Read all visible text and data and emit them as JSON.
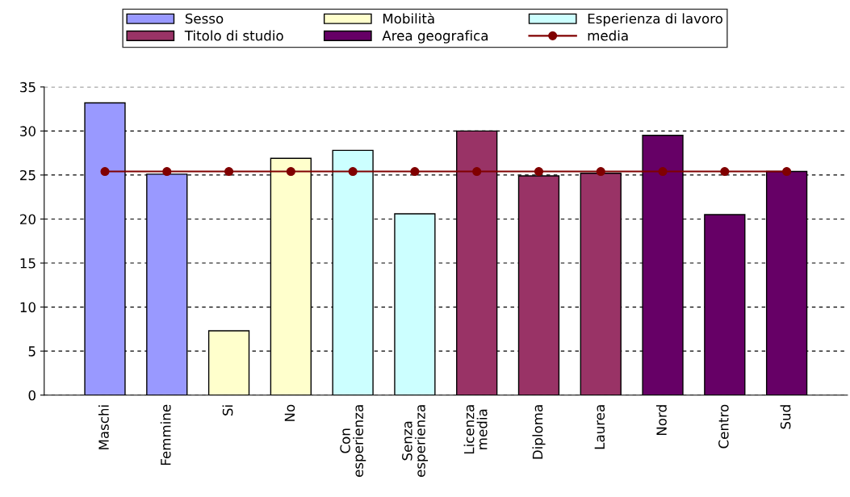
{
  "chart_data": {
    "type": "bar",
    "categories": [
      "Maschi",
      "Femmine",
      "Si",
      "No",
      "Con\nesperienza",
      "Senza\nesperienza",
      "Licenza\nmedia",
      "Diploma",
      "Laurea",
      "Nord",
      "Centro",
      "Sud"
    ],
    "series": [
      {
        "name": "Sesso",
        "color": "#9999ff",
        "values": [
          33.2,
          25.1,
          null,
          null,
          null,
          null,
          null,
          null,
          null,
          null,
          null,
          null
        ]
      },
      {
        "name": "Mobilità",
        "color": "#ffffcc",
        "values": [
          null,
          null,
          7.3,
          26.9,
          null,
          null,
          null,
          null,
          null,
          null,
          null,
          null
        ]
      },
      {
        "name": "Esperienza di lavoro",
        "color": "#ccffff",
        "values": [
          null,
          null,
          null,
          null,
          27.8,
          20.6,
          null,
          null,
          null,
          null,
          null,
          null
        ]
      },
      {
        "name": "Titolo di studio",
        "color": "#993366",
        "values": [
          null,
          null,
          null,
          null,
          null,
          null,
          30.0,
          24.9,
          25.2,
          null,
          null,
          null
        ]
      },
      {
        "name": "Area geografica",
        "color": "#660066",
        "values": [
          null,
          null,
          null,
          null,
          null,
          null,
          null,
          null,
          null,
          29.5,
          20.5,
          25.4
        ]
      },
      {
        "name": "media",
        "type": "line",
        "color": "#800000",
        "marker": "circle",
        "values": [
          25.4,
          25.4,
          25.4,
          25.4,
          25.4,
          25.4,
          25.4,
          25.4,
          25.4,
          25.4,
          25.4,
          25.4
        ]
      }
    ],
    "ylim": [
      0,
      35
    ],
    "yticks": [
      0,
      5,
      10,
      15,
      20,
      25,
      30,
      35
    ],
    "grid": "y",
    "legend": "top"
  }
}
